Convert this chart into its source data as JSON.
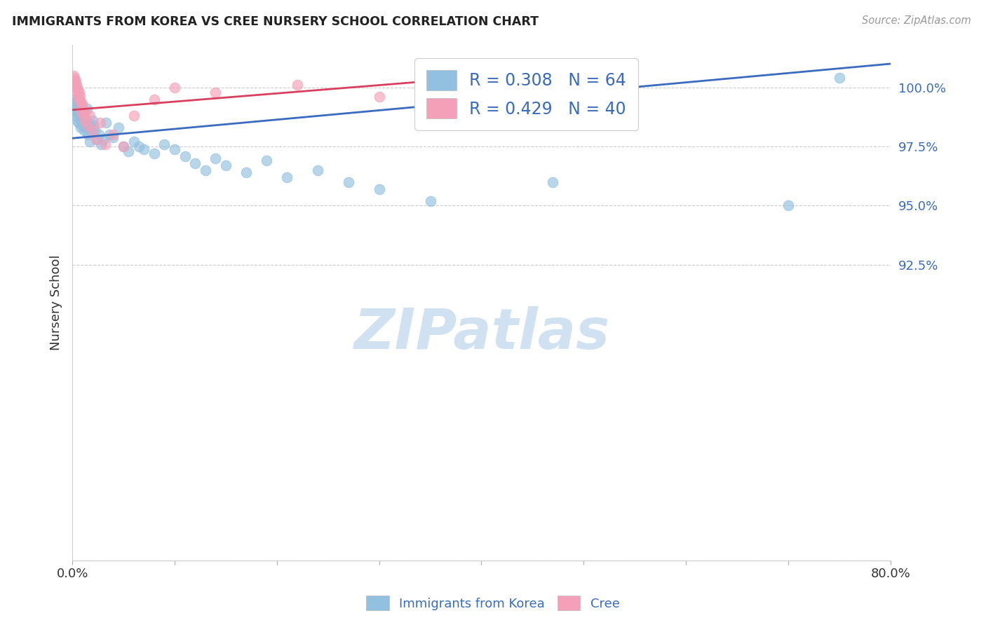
{
  "title": "IMMIGRANTS FROM KOREA VS CREE NURSERY SCHOOL CORRELATION CHART",
  "source": "Source: ZipAtlas.com",
  "ylabel": "Nursery School",
  "xlim": [
    0.0,
    80.0
  ],
  "ylim": [
    80.0,
    101.8
  ],
  "yticks": [
    80.0,
    92.5,
    95.0,
    97.5,
    100.0
  ],
  "ytick_labels": [
    "",
    "92.5%",
    "95.0%",
    "97.5%",
    "100.0%"
  ],
  "xticks": [
    0.0,
    10.0,
    20.0,
    30.0,
    40.0,
    50.0,
    60.0,
    70.0,
    80.0
  ],
  "xtick_labels": [
    "0.0%",
    "",
    "",
    "",
    "",
    "",
    "",
    "",
    "80.0%"
  ],
  "blue_color": "#92C0E0",
  "pink_color": "#F4A0B8",
  "blue_line_color": "#3A6BBF",
  "pink_line_color": "#D94060",
  "tick_color": "#3A6BBF",
  "watermark_color": "#C8DCF0",
  "watermark": "ZIPatlas",
  "R_blue": 0.308,
  "N_blue": 64,
  "R_pink": 0.429,
  "N_pink": 40,
  "blue_line_x0": 0.0,
  "blue_line_y0": 97.85,
  "blue_line_x1": 80.0,
  "blue_line_y1": 101.0,
  "pink_line_x0": 0.0,
  "pink_line_y0": 99.05,
  "pink_line_x1": 43.0,
  "pink_line_y1": 100.55,
  "blue_x": [
    0.15,
    0.18,
    0.2,
    0.25,
    0.3,
    0.35,
    0.4,
    0.45,
    0.5,
    0.55,
    0.6,
    0.65,
    0.7,
    0.75,
    0.8,
    0.85,
    0.9,
    0.95,
    1.0,
    1.05,
    1.1,
    1.15,
    1.2,
    1.3,
    1.4,
    1.5,
    1.6,
    1.7,
    1.8,
    1.9,
    2.0,
    2.1,
    2.2,
    2.4,
    2.6,
    2.8,
    3.0,
    3.3,
    3.6,
    4.0,
    4.5,
    5.0,
    5.5,
    6.0,
    6.5,
    7.0,
    8.0,
    9.0,
    10.0,
    11.0,
    12.0,
    13.0,
    14.0,
    15.0,
    17.0,
    19.0,
    21.0,
    24.0,
    27.0,
    30.0,
    35.0,
    47.0,
    70.0,
    75.0
  ],
  "blue_y": [
    99.0,
    99.3,
    99.5,
    99.1,
    98.8,
    99.4,
    99.2,
    98.6,
    99.0,
    99.3,
    98.5,
    98.9,
    99.1,
    98.7,
    98.3,
    98.8,
    99.2,
    98.4,
    98.6,
    99.0,
    98.5,
    98.2,
    98.7,
    98.3,
    99.1,
    98.0,
    98.5,
    97.7,
    98.3,
    98.1,
    98.6,
    98.4,
    98.2,
    97.8,
    98.0,
    97.6,
    97.8,
    98.5,
    98.0,
    97.9,
    98.3,
    97.5,
    97.3,
    97.7,
    97.5,
    97.4,
    97.2,
    97.6,
    97.4,
    97.1,
    96.8,
    96.5,
    97.0,
    96.7,
    96.4,
    96.9,
    96.2,
    96.5,
    96.0,
    95.7,
    95.2,
    96.0,
    95.0,
    100.4
  ],
  "pink_x": [
    0.1,
    0.15,
    0.2,
    0.25,
    0.3,
    0.35,
    0.4,
    0.45,
    0.5,
    0.55,
    0.6,
    0.65,
    0.7,
    0.75,
    0.8,
    0.85,
    0.9,
    0.95,
    1.0,
    1.1,
    1.2,
    1.3,
    1.5,
    1.7,
    2.0,
    2.3,
    2.7,
    3.2,
    4.0,
    5.0,
    6.0,
    8.0,
    10.0,
    14.0,
    22.0,
    30.0,
    40.0,
    40.5,
    41.0,
    42.0
  ],
  "pink_y": [
    100.3,
    100.5,
    100.4,
    100.2,
    100.0,
    100.3,
    100.1,
    99.8,
    100.0,
    99.9,
    99.7,
    99.5,
    99.8,
    99.6,
    99.4,
    99.2,
    99.0,
    99.3,
    99.1,
    98.8,
    98.6,
    99.0,
    98.4,
    98.8,
    98.2,
    97.8,
    98.5,
    97.6,
    98.0,
    97.5,
    98.8,
    99.5,
    100.0,
    99.8,
    100.1,
    99.6,
    100.3,
    100.4,
    100.2,
    99.9
  ],
  "background_color": "#FFFFFF",
  "grid_color": "#CCCCCC"
}
